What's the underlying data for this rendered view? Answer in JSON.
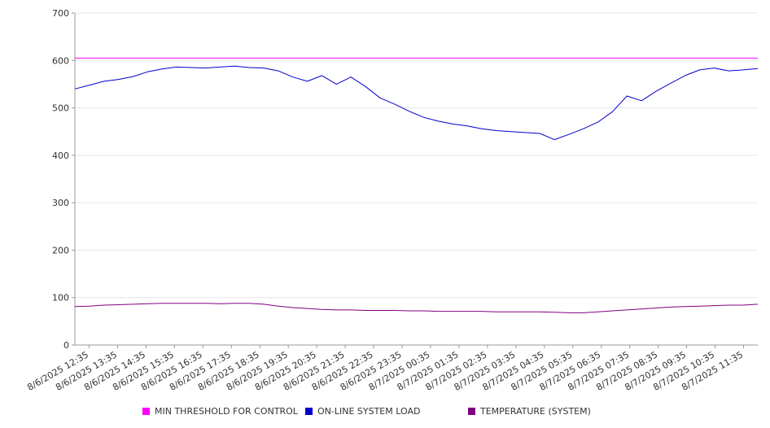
{
  "chart_data": {
    "type": "line",
    "title": "",
    "xlabel": "",
    "ylabel": "",
    "ylim": [
      0,
      700
    ],
    "yticks": [
      0,
      100,
      200,
      300,
      400,
      500,
      600,
      700
    ],
    "grid": "horizontal",
    "legend_position": "bottom",
    "xtick_labels": [
      "8/6/2025 12:35",
      "8/6/2025 13:35",
      "8/6/2025 14:35",
      "8/6/2025 15:35",
      "8/6/2025 16:35",
      "8/6/2025 17:35",
      "8/6/2025 18:35",
      "8/6/2025 19:35",
      "8/6/2025 20:35",
      "8/6/2025 21:35",
      "8/6/2025 22:35",
      "8/6/2025 23:35",
      "8/7/2025 00:35",
      "8/7/2025 01:35",
      "8/7/2025 02:35",
      "8/7/2025 03:35",
      "8/7/2025 04:35",
      "8/7/2025 05:35",
      "8/7/2025 06:35",
      "8/7/2025 07:35",
      "8/7/2025 08:35",
      "8/7/2025 09:35",
      "8/7/2025 10:35",
      "8/7/2025 11:35"
    ],
    "x": [
      "8/6/2025 12:35",
      "8/6/2025 13:05",
      "8/6/2025 13:35",
      "8/6/2025 14:05",
      "8/6/2025 14:35",
      "8/6/2025 15:05",
      "8/6/2025 15:35",
      "8/6/2025 16:05",
      "8/6/2025 16:35",
      "8/6/2025 17:05",
      "8/6/2025 17:35",
      "8/6/2025 18:05",
      "8/6/2025 18:35",
      "8/6/2025 19:05",
      "8/6/2025 19:35",
      "8/6/2025 20:05",
      "8/6/2025 20:35",
      "8/6/2025 21:05",
      "8/6/2025 21:35",
      "8/6/2025 22:05",
      "8/6/2025 22:35",
      "8/6/2025 23:05",
      "8/6/2025 23:35",
      "8/7/2025 00:05",
      "8/7/2025 00:35",
      "8/7/2025 01:05",
      "8/7/2025 01:35",
      "8/7/2025 02:05",
      "8/7/2025 02:35",
      "8/7/2025 03:05",
      "8/7/2025 03:35",
      "8/7/2025 04:05",
      "8/7/2025 04:35",
      "8/7/2025 05:05",
      "8/7/2025 05:35",
      "8/7/2025 06:05",
      "8/7/2025 06:35",
      "8/7/2025 07:05",
      "8/7/2025 07:35",
      "8/7/2025 08:05",
      "8/7/2025 08:35",
      "8/7/2025 09:05",
      "8/7/2025 09:35",
      "8/7/2025 10:05",
      "8/7/2025 10:35",
      "8/7/2025 11:05",
      "8/7/2025 11:35",
      "8/7/2025 12:05"
    ],
    "series": [
      {
        "name": "MIN THRESHOLD FOR CONTROL",
        "color": "#ff00ff",
        "values": [
          605,
          605,
          605,
          605,
          605,
          605,
          605,
          605,
          605,
          605,
          605,
          605,
          605,
          605,
          605,
          605,
          605,
          605,
          605,
          605,
          605,
          605,
          605,
          605,
          605,
          605,
          605,
          605,
          605,
          605,
          605,
          605,
          605,
          605,
          605,
          605,
          605,
          605,
          605,
          605,
          605,
          605,
          605,
          605,
          605,
          605,
          605,
          605
        ]
      },
      {
        "name": "ON-LINE SYSTEM LOAD",
        "color": "#0000cc",
        "values": [
          540,
          548,
          556,
          560,
          566,
          576,
          582,
          586,
          585,
          584,
          586,
          588,
          585,
          584,
          578,
          565,
          556,
          568,
          550,
          565,
          545,
          521,
          508,
          493,
          480,
          472,
          466,
          462,
          456,
          452,
          450,
          448,
          446,
          433,
          444,
          456,
          470,
          492,
          525,
          515,
          535,
          552,
          568,
          580,
          584,
          578,
          580,
          583
        ]
      },
      {
        "name": "TEMPERATURE (SYSTEM)",
        "color": "#800080",
        "values": [
          81,
          82,
          84,
          85,
          86,
          87,
          88,
          88,
          88,
          88,
          87,
          88,
          88,
          86,
          82,
          79,
          77,
          75,
          74,
          74,
          73,
          73,
          73,
          72,
          72,
          71,
          71,
          71,
          71,
          70,
          70,
          70,
          70,
          69,
          68,
          68,
          70,
          72,
          74,
          76,
          78,
          80,
          81,
          82,
          83,
          84,
          84,
          86
        ]
      }
    ]
  }
}
